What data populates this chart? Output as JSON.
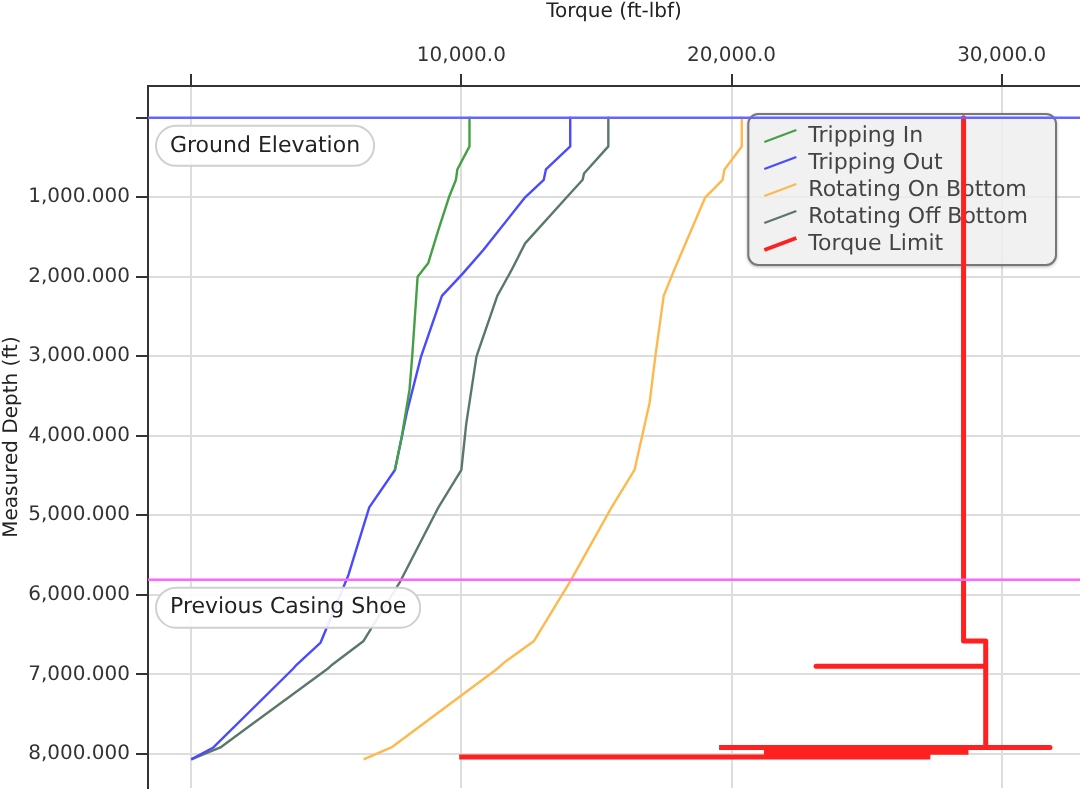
{
  "chart_data": {
    "type": "line",
    "xlabel": "Torque (ft-lbf)",
    "ylabel": "Measured Depth (ft)",
    "xlim": [
      -1600,
      32900
    ],
    "xticks": [
      {
        "value": 0,
        "label": null
      },
      {
        "value": 10000,
        "label": "10,000.0"
      },
      {
        "value": 20000,
        "label": "20,000.0"
      },
      {
        "value": 30000,
        "label": "30,000.0"
      }
    ],
    "ylim": [
      8430,
      -400
    ],
    "yticks": [
      {
        "value": 0,
        "label": null
      },
      {
        "value": 1000,
        "label": "1,000.000"
      },
      {
        "value": 2000,
        "label": "2,000.000"
      },
      {
        "value": 3000,
        "label": "3,000.000"
      },
      {
        "value": 4000,
        "label": "4,000.000"
      },
      {
        "value": 5000,
        "label": "5,000.000"
      },
      {
        "value": 6000,
        "label": "6,000.000"
      },
      {
        "value": 7000,
        "label": "7,000.000"
      },
      {
        "value": 8000,
        "label": "8,000.000"
      }
    ],
    "grid": true,
    "legend": "top right",
    "line_style": "solid",
    "marker": "none",
    "ref_lines": [
      {
        "axis": "y",
        "value": 0,
        "label": "Ground Elevation",
        "color": "#6666ff"
      },
      {
        "axis": "y",
        "value": 5810,
        "label": "Previous Casing Shoe",
        "color": "#ff66ff"
      }
    ],
    "series": [
      {
        "name": "Tripping In",
        "color": "#44a044",
        "x": [
          10300,
          10300,
          9850,
          9800,
          9540,
          9150,
          8770,
          8380,
          8180,
          8080,
          7800,
          7540
        ],
        "values": [
          0,
          360,
          650,
          780,
          1000,
          1410,
          1830,
          2000,
          3000,
          3420,
          4000,
          4430
        ]
      },
      {
        "name": "Tripping Out",
        "color": "#4a4aff",
        "x": [
          14030,
          14030,
          13130,
          13050,
          12360,
          10820,
          10050,
          9280,
          8510,
          8000,
          7540,
          6590,
          5820,
          4790,
          3900,
          3770,
          820,
          0
        ],
        "values": [
          0,
          360,
          650,
          780,
          1000,
          1660,
          1960,
          2240,
          3000,
          3680,
          4430,
          4900,
          5750,
          6600,
          6880,
          6930,
          7920,
          8070
        ]
      },
      {
        "name": "Rotating On Bottom",
        "color": "#ffb84d",
        "x": [
          20380,
          20380,
          19740,
          19670,
          19030,
          17870,
          17490,
          17180,
          16970,
          16410,
          15560,
          14030,
          12690,
          11590,
          11330,
          7410,
          6380
        ],
        "values": [
          0,
          360,
          650,
          780,
          1000,
          1920,
          2240,
          3000,
          3580,
          4430,
          4900,
          5830,
          6580,
          6850,
          6930,
          7920,
          8070
        ]
      },
      {
        "name": "Rotating Off Bottom",
        "color": "#5a7868",
        "x": [
          15440,
          15440,
          14540,
          14490,
          13900,
          12360,
          11850,
          11330,
          10560,
          10180,
          10000,
          9150,
          7740,
          6380,
          5180,
          5050,
          1080,
          0
        ],
        "values": [
          0,
          360,
          700,
          780,
          1000,
          1580,
          1920,
          2240,
          3000,
          3850,
          4430,
          4900,
          5830,
          6580,
          6890,
          6930,
          7920,
          8070
        ]
      },
      {
        "name": "Torque Limit",
        "color": "#ff2020",
        "x": [
          28590,
          28590,
          29410,
          29410,
          23130,
          29410,
          29410,
          31790,
          19540,
          null,
          21200,
          28770,
          null,
          9920,
          27360
        ],
        "values": [
          0,
          6580,
          6580,
          6900,
          6900,
          6900,
          7920,
          7920,
          7920,
          null,
          7980,
          7980,
          null,
          8040,
          8040
        ]
      }
    ]
  }
}
